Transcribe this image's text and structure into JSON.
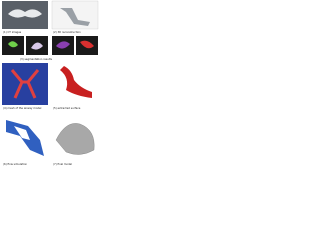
{
  "panels": [
    {
      "label": "(1) CT images"
    },
    {
      "label": "(2) 3D reconstruction"
    },
    {
      "label": "(3) segmentation results"
    },
    {
      "label": "(4) mesh of the airway model"
    },
    {
      "label": "(5) extracted surface"
    },
    {
      "label": "(6) flow simulation"
    },
    {
      "label": "(7) final model"
    }
  ]
}
